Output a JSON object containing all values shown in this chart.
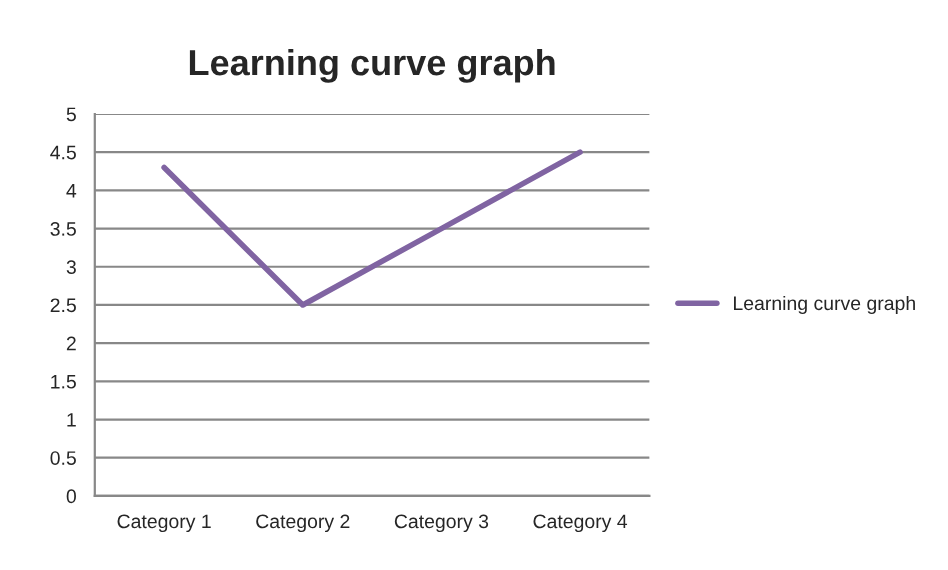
{
  "chart_data": {
    "type": "line",
    "title": "Learning curve graph",
    "categories": [
      "Category 1",
      "Category 2",
      "Category 3",
      "Category 4"
    ],
    "series": [
      {
        "name": "Learning curve graph",
        "color": "#8064a2",
        "values": [
          4.3,
          2.5,
          3.5,
          4.5
        ]
      }
    ],
    "ylim": [
      0,
      5
    ],
    "yticks": [
      0,
      0.5,
      1,
      1.5,
      2,
      2.5,
      3,
      3.5,
      4,
      4.5,
      5
    ],
    "grid": "y",
    "legend": "right",
    "marker": "none",
    "line_style": "solid"
  }
}
